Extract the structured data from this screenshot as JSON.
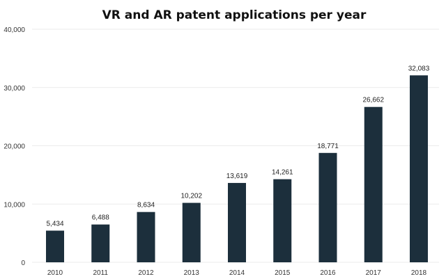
{
  "chart_data": {
    "type": "bar",
    "title": "VR and AR patent applications per year",
    "xlabel": "",
    "ylabel": "",
    "categories": [
      "2010",
      "2011",
      "2012",
      "2013",
      "2014",
      "2015",
      "2016",
      "2017",
      "2018"
    ],
    "values": [
      5434,
      6488,
      8634,
      10202,
      13619,
      14261,
      18771,
      26662,
      32083
    ],
    "value_labels": [
      "5,434",
      "6,488",
      "8,634",
      "10,202",
      "13,619",
      "14,261",
      "18,771",
      "26,662",
      "32,083"
    ],
    "ylim": [
      0,
      40000
    ],
    "yticks": [
      0,
      10000,
      20000,
      30000,
      40000
    ],
    "ytick_labels": [
      "0",
      "10,000",
      "20,000",
      "30,000",
      "40,000"
    ],
    "grid": true,
    "legend": "none",
    "bar_color": "#1c2f3c",
    "grid_color": "#ebebeb"
  }
}
